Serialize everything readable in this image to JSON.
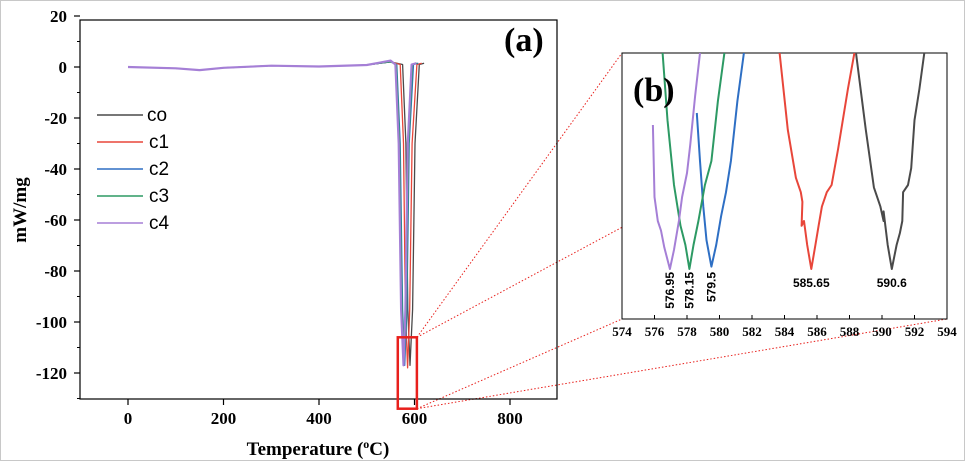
{
  "chart_data": [
    {
      "id": "a",
      "type": "line",
      "panel_label": "(a)",
      "xlabel": "Temperature (",
      "xlabel_sup": "o",
      "xlabel_end": "C)",
      "ylabel": "mW/mg",
      "xlim": [
        -100,
        900
      ],
      "ylim": [
        -130,
        20
      ],
      "xticks": [
        0,
        200,
        400,
        600,
        800
      ],
      "yticks": [
        20,
        0,
        -20,
        -40,
        -60,
        -80,
        -100,
        -120
      ],
      "legend_position": "left-middle",
      "highlight_box": {
        "x": [
          565,
          605
        ],
        "y": [
          -106,
          -134
        ],
        "color": "#e8201c"
      },
      "series": [
        {
          "name": "co",
          "color": "#4a4a4a",
          "x": [
            0,
            100,
            150,
            200,
            300,
            400,
            500,
            550,
            575,
            582,
            586,
            590.6,
            596,
            601,
            610,
            620
          ],
          "y": [
            0,
            -0.5,
            -1.2,
            -0.3,
            0.5,
            0.2,
            0.8,
            2,
            1,
            -30,
            -95,
            -117,
            -95,
            -30,
            1,
            1.5
          ]
        },
        {
          "name": "c1",
          "color": "#e8463a",
          "x": [
            0,
            100,
            150,
            200,
            300,
            400,
            500,
            550,
            570,
            577,
            581,
            585.65,
            590,
            595,
            605,
            615
          ],
          "y": [
            0,
            -0.5,
            -1.2,
            -0.3,
            0.5,
            0.2,
            0.8,
            2,
            1,
            -30,
            -95,
            -118,
            -95,
            -30,
            1,
            1.5
          ]
        },
        {
          "name": "c2",
          "color": "#2e6fc4",
          "x": [
            0,
            100,
            150,
            200,
            300,
            400,
            500,
            550,
            563,
            570,
            575,
            579.5,
            584,
            589,
            598,
            608
          ],
          "y": [
            0,
            -0.5,
            -1.2,
            -0.3,
            0.5,
            0.2,
            0.8,
            2,
            1,
            -30,
            -95,
            -117,
            -95,
            -30,
            1,
            1.5
          ]
        },
        {
          "name": "c3",
          "color": "#2d9a64",
          "x": [
            0,
            100,
            150,
            200,
            300,
            400,
            500,
            550,
            562,
            569,
            574,
            578.15,
            583,
            588,
            596,
            606
          ],
          "y": [
            0,
            -0.5,
            -1.2,
            -0.3,
            0.5,
            0.2,
            0.8,
            2,
            1,
            -30,
            -95,
            -116,
            -95,
            -30,
            1,
            1.5
          ]
        },
        {
          "name": "c4",
          "color": "#a57fd6",
          "x": [
            0,
            100,
            150,
            200,
            300,
            400,
            500,
            550,
            560,
            567,
            572,
            576.95,
            581,
            586,
            594,
            604
          ],
          "y": [
            0,
            -0.5,
            -1.2,
            -0.3,
            0.5,
            0.2,
            0.8,
            2.5,
            1,
            -30,
            -95,
            -117,
            -95,
            -30,
            1,
            1.5
          ]
        }
      ]
    },
    {
      "id": "b",
      "type": "line",
      "panel_label": "(b)",
      "xlim": [
        574,
        594
      ],
      "ylim": [
        0,
        1
      ],
      "xticks": [
        574,
        576,
        578,
        580,
        582,
        584,
        586,
        588,
        590,
        592,
        594
      ],
      "annotations": [
        {
          "text": "576.95",
          "x": 576.95,
          "rotated": true
        },
        {
          "text": "578.15",
          "x": 578.15,
          "rotated": true
        },
        {
          "text": "579.5",
          "x": 579.5,
          "rotated": true
        },
        {
          "text": "585.65",
          "x": 585.65,
          "rotated": false
        },
        {
          "text": "590.6",
          "x": 590.6,
          "rotated": false
        }
      ],
      "series": [
        {
          "name": "co",
          "color": "#4a4a4a",
          "x": [
            588.4,
            589.0,
            589.5,
            589.9,
            590.1,
            590.1,
            590.35,
            590.6,
            590.9,
            591.1,
            591.25,
            591.3,
            591.6,
            591.8,
            592.0,
            592.3,
            592.6
          ],
          "y": [
            1.0,
            0.68,
            0.44,
            0.36,
            0.3,
            0.34,
            0.2,
            0.1,
            0.2,
            0.25,
            0.3,
            0.42,
            0.45,
            0.52,
            0.72,
            0.85,
            1.0
          ]
        },
        {
          "name": "c1",
          "color": "#e8463a",
          "x": [
            583.7,
            584.2,
            584.7,
            585.0,
            585.1,
            585.05,
            585.2,
            585.4,
            585.65,
            585.9,
            586.1,
            586.3,
            586.6,
            586.9,
            587.3,
            587.9,
            588.3
          ],
          "y": [
            1.0,
            0.68,
            0.48,
            0.42,
            0.38,
            0.28,
            0.3,
            0.2,
            0.1,
            0.2,
            0.28,
            0.36,
            0.42,
            0.45,
            0.6,
            0.85,
            1.0
          ]
        },
        {
          "name": "c2",
          "color": "#2e6fc4",
          "x": [
            578.6,
            578.8,
            579.0,
            579.2,
            579.5,
            579.8,
            580.1,
            580.4,
            580.7,
            581.1,
            581.5
          ],
          "y": [
            0.75,
            0.55,
            0.36,
            0.22,
            0.11,
            0.2,
            0.32,
            0.42,
            0.55,
            0.8,
            1.0
          ]
        },
        {
          "name": "c3",
          "color": "#2d9a64",
          "x": [
            576.5,
            576.8,
            577.2,
            577.6,
            577.9,
            578.15,
            578.4,
            578.7,
            579.1,
            579.5,
            579.9,
            580.3
          ],
          "y": [
            1.0,
            0.72,
            0.45,
            0.28,
            0.2,
            0.1,
            0.2,
            0.3,
            0.45,
            0.55,
            0.8,
            1.0
          ]
        },
        {
          "name": "c4",
          "color": "#a57fd6",
          "x": [
            575.9,
            576.0,
            576.2,
            576.4,
            576.6,
            576.95,
            577.2,
            577.5,
            577.7,
            578.0,
            578.2,
            578.5,
            578.8
          ],
          "y": [
            0.7,
            0.4,
            0.3,
            0.26,
            0.19,
            0.1,
            0.18,
            0.3,
            0.4,
            0.5,
            0.62,
            0.82,
            1.0
          ]
        }
      ]
    }
  ]
}
